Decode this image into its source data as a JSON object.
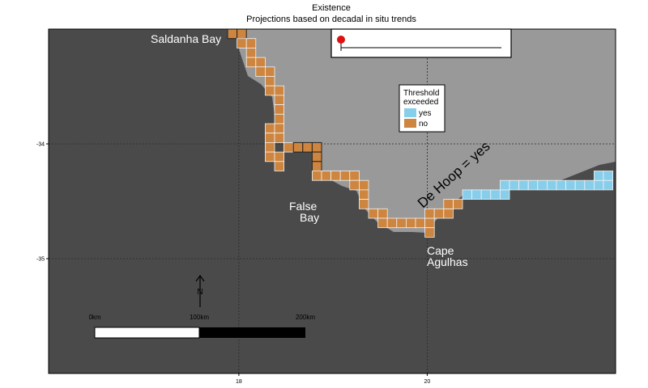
{
  "title": "Existence",
  "subtitle": "Projections based on decadal in situ trends",
  "colors": {
    "ocean": "#4a4a4a",
    "land": "#999999",
    "exceeded_yes": "#87ceeb",
    "exceeded_no": "#cd853f",
    "label": "#ffffff"
  },
  "axes": {
    "x_ticks": [
      {
        "value": 18,
        "label": "18"
      },
      {
        "value": 20,
        "label": "20"
      }
    ],
    "y_ticks": [
      {
        "value": -34,
        "label": "-34"
      },
      {
        "value": -35,
        "label": "-35"
      }
    ],
    "xlim": [
      15.98,
      22.0
    ],
    "ylim": [
      -36.0,
      -33.0
    ]
  },
  "places": [
    {
      "name": "Saldanha Bay",
      "lines": [
        "Saldanha Bay"
      ],
      "lon": 17.5,
      "lat": -33.15
    },
    {
      "name": "False Bay",
      "lines": [
        "False",
        "Bay"
      ],
      "lon": 18.6,
      "lat": -34.55
    },
    {
      "name": "Cape Agulhas",
      "lines": [
        "Cape",
        "Agulhas"
      ],
      "lon": 20.15,
      "lat": -34.95
    }
  ],
  "annotation": {
    "text": "De Hoop = yes",
    "lon": 20.4,
    "lat": -34.3,
    "rotation_deg": -42
  },
  "legend": {
    "title_lines": [
      "Threshold",
      "exceeded"
    ],
    "position": "top-center",
    "items": [
      {
        "label": "yes",
        "key": "exceeded_yes"
      },
      {
        "label": "no",
        "key": "exceeded_no"
      }
    ]
  },
  "scale_bar": {
    "labels": [
      "0km",
      "100km",
      "200km"
    ]
  },
  "north_arrow": {
    "label": "N"
  },
  "grid": true,
  "cell_size_deg": 0.1
}
